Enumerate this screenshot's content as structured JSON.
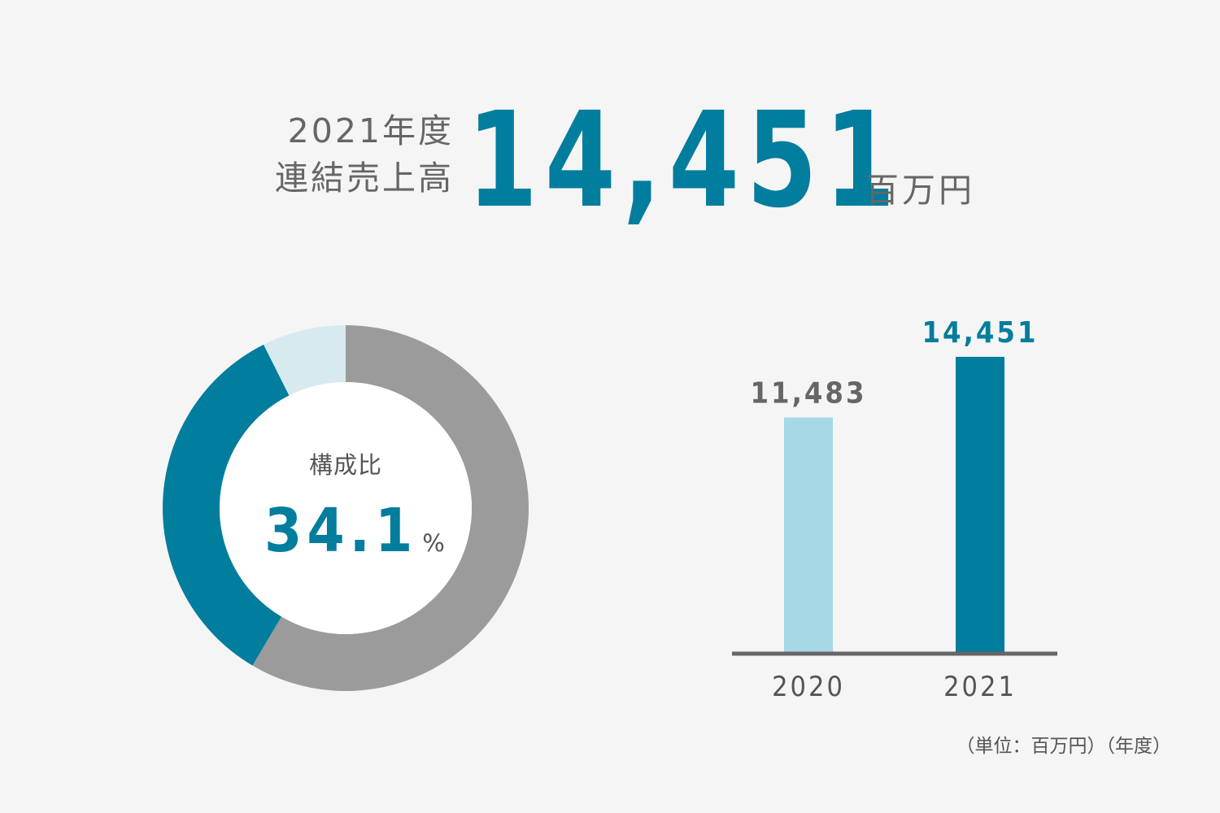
{
  "header": {
    "fiscal_year_label": "2021年度",
    "sales_label": "連結売上高",
    "total_value": "14,451",
    "total_unit": "百万円"
  },
  "chart_data": [
    {
      "type": "pie",
      "variant": "donut",
      "center_caption": "構成比",
      "center_value": "34.1",
      "center_unit": "%",
      "slices": [
        {
          "value": 58.5,
          "color": "#9b9b9b"
        },
        {
          "value": 34.1,
          "color": "#017d9d"
        },
        {
          "value": 7.4,
          "color": "#d6eaf0"
        }
      ],
      "start_angle_deg": 0,
      "direction": "clockwise"
    },
    {
      "type": "bar",
      "categories": [
        "2020",
        "2021"
      ],
      "values": [
        11483,
        14451
      ],
      "value_labels": [
        "11,483",
        "14,451"
      ],
      "bar_colors": [
        "#a6d8e6",
        "#017d9d"
      ],
      "label_colors": [
        "#666666",
        "#017d9d"
      ],
      "ylim": [
        0,
        16000
      ],
      "grid": false,
      "baseline_color": "#666666"
    }
  ],
  "footnote": "（単位：百万円）（年度）"
}
